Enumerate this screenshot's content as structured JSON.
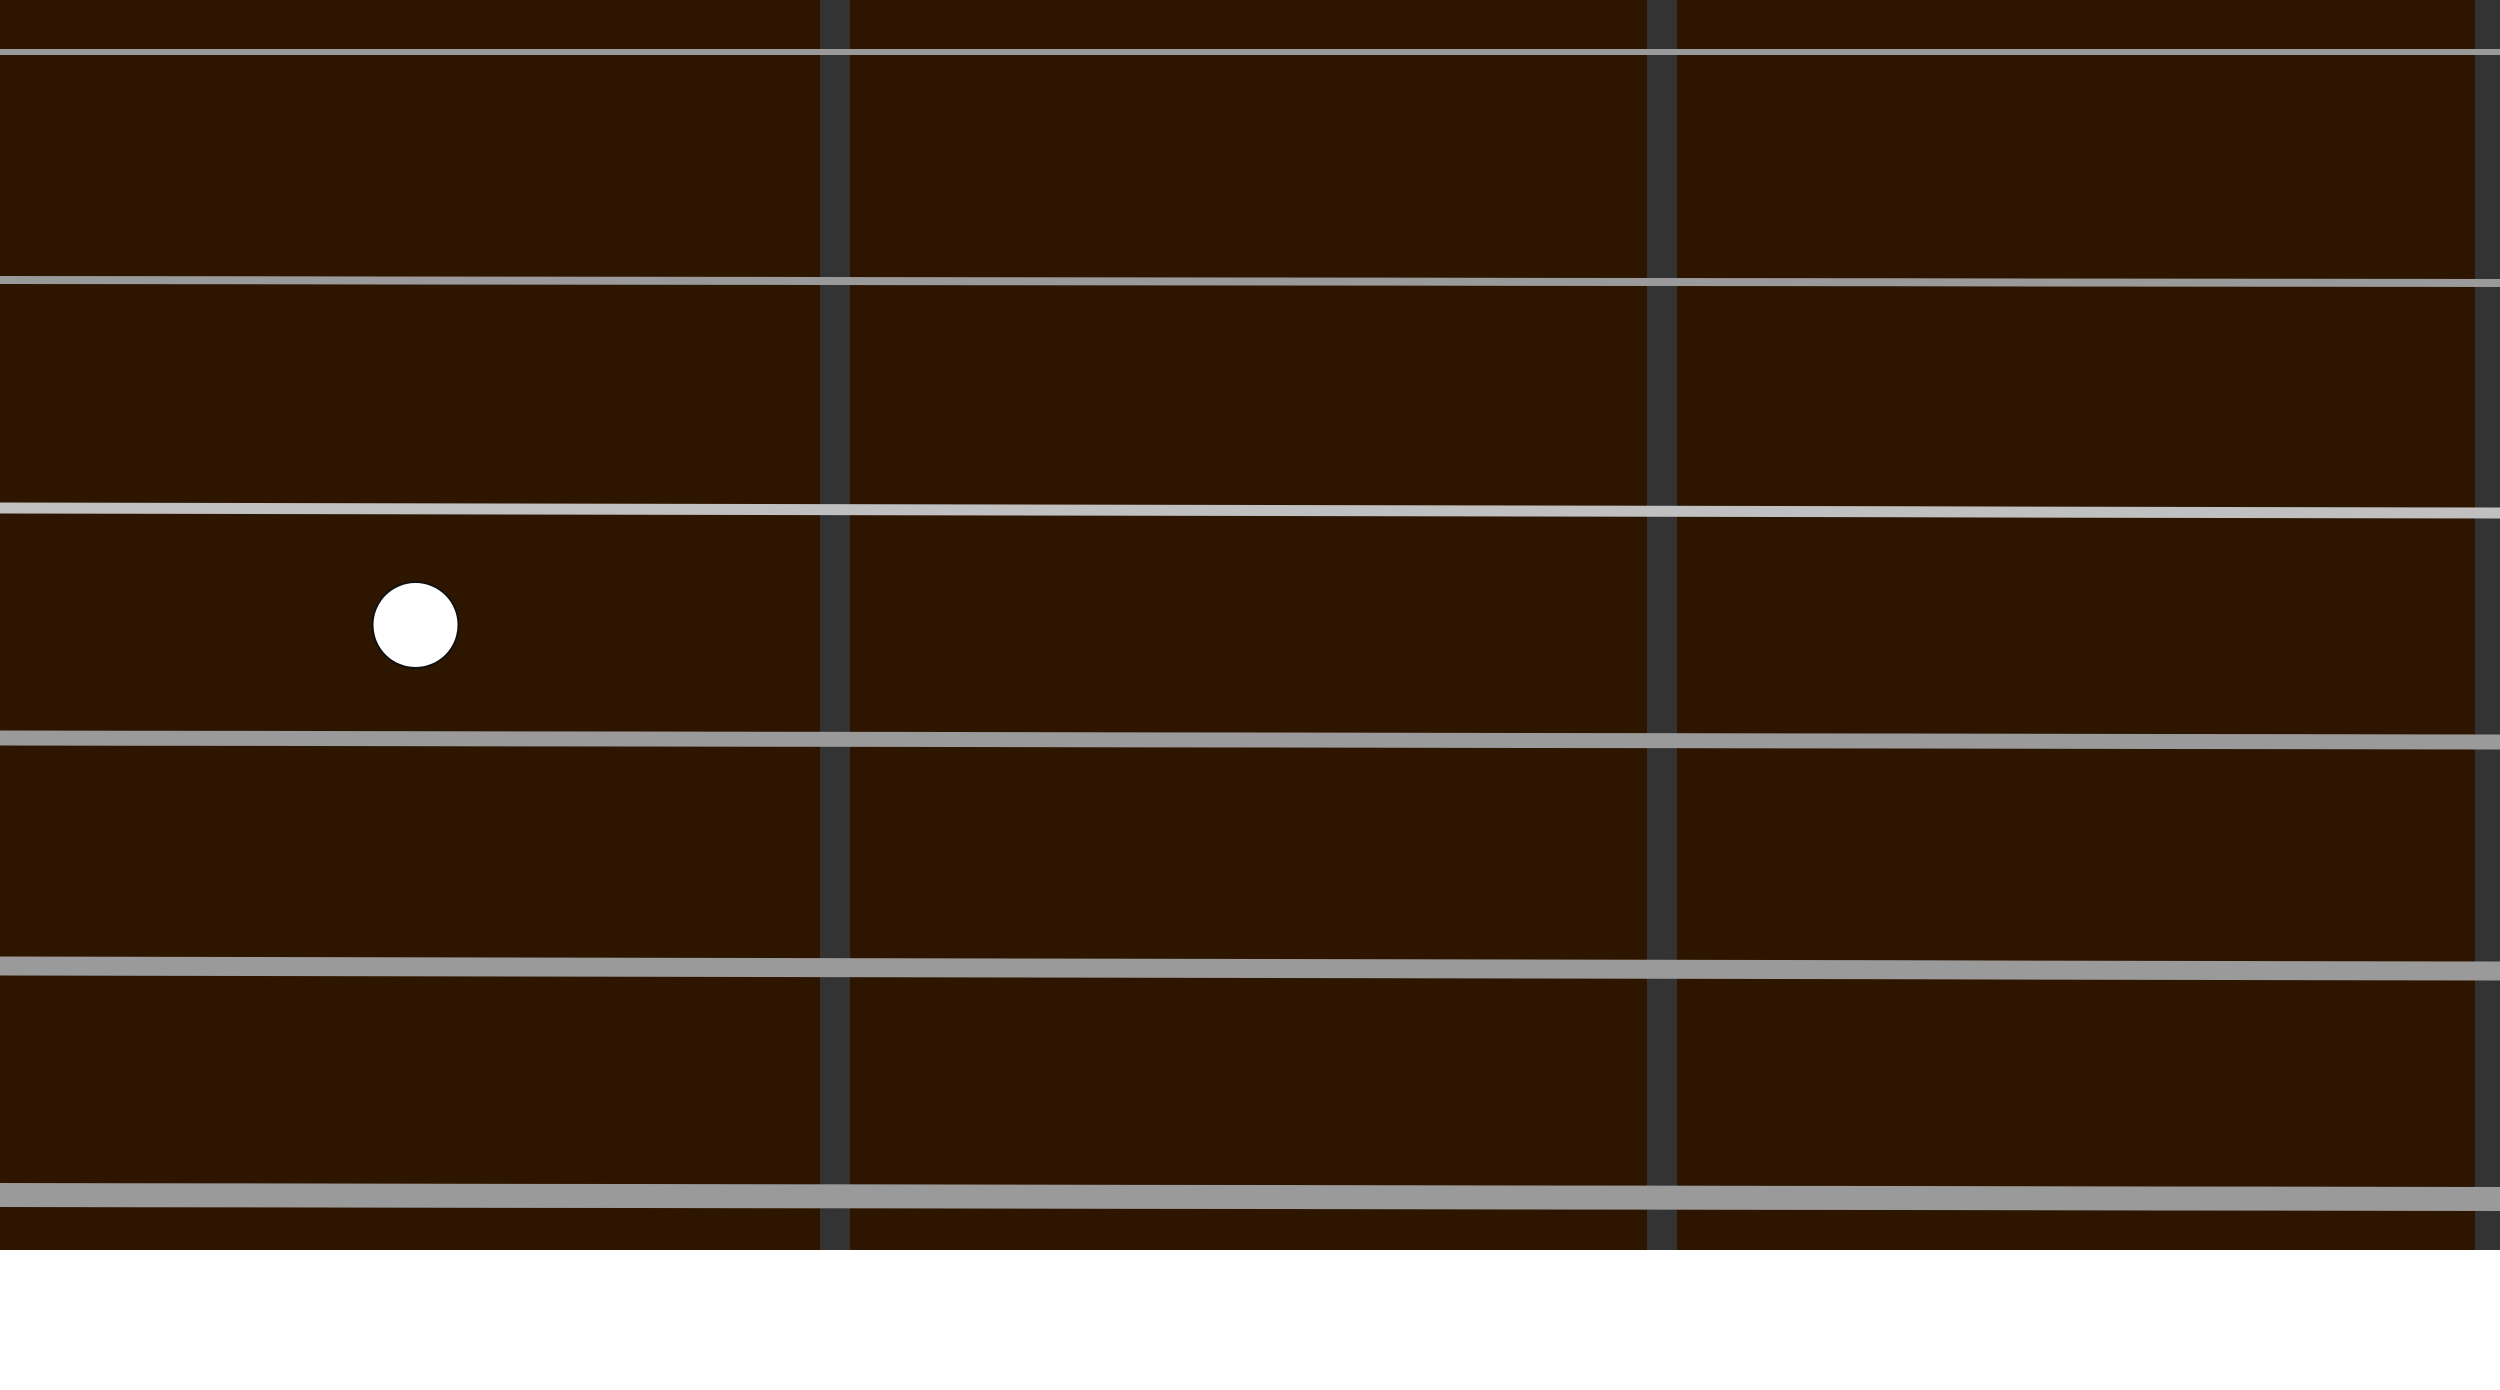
{
  "fretboard": {
    "wood_color": "#2e1500",
    "fret_color": "#333333",
    "string_color": "#9a9a9a",
    "string_highlight_color": "#c0c0c0",
    "marker_color": "#ffffff",
    "frets_visible": 3,
    "strings": [
      {
        "number": 1
      },
      {
        "number": 2
      },
      {
        "number": 3
      },
      {
        "number": 4
      },
      {
        "number": 5
      },
      {
        "number": 6
      }
    ],
    "markers": [
      {
        "fret": 1,
        "between_strings": [
          3,
          4
        ],
        "icon": "circle-dot-icon"
      }
    ]
  }
}
